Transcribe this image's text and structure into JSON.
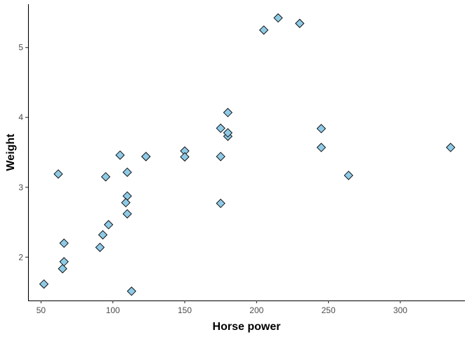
{
  "chart_data": {
    "type": "scatter",
    "xlabel": "Horse power",
    "ylabel": "Weight",
    "xlim": [
      41,
      345
    ],
    "ylim": [
      1.38,
      5.62
    ],
    "xticks": [
      50,
      100,
      150,
      200,
      250,
      300
    ],
    "yticks": [
      2,
      3,
      4,
      5
    ],
    "grid": false,
    "point_shape": "diamond",
    "point_color": "#8ecae6",
    "series": [
      {
        "points": [
          {
            "x": 110,
            "y": 2.62
          },
          {
            "x": 110,
            "y": 2.875
          },
          {
            "x": 93,
            "y": 2.32
          },
          {
            "x": 110,
            "y": 3.215
          },
          {
            "x": 175,
            "y": 3.44
          },
          {
            "x": 105,
            "y": 3.46
          },
          {
            "x": 245,
            "y": 3.57
          },
          {
            "x": 62,
            "y": 3.19
          },
          {
            "x": 95,
            "y": 3.15
          },
          {
            "x": 123,
            "y": 3.44
          },
          {
            "x": 123,
            "y": 3.44
          },
          {
            "x": 180,
            "y": 4.07
          },
          {
            "x": 180,
            "y": 3.73
          },
          {
            "x": 180,
            "y": 3.78
          },
          {
            "x": 205,
            "y": 5.25
          },
          {
            "x": 215,
            "y": 5.424
          },
          {
            "x": 230,
            "y": 5.345
          },
          {
            "x": 66,
            "y": 2.2
          },
          {
            "x": 52,
            "y": 1.615
          },
          {
            "x": 65,
            "y": 1.835
          },
          {
            "x": 97,
            "y": 2.465
          },
          {
            "x": 150,
            "y": 3.52
          },
          {
            "x": 150,
            "y": 3.435
          },
          {
            "x": 245,
            "y": 3.84
          },
          {
            "x": 175,
            "y": 3.845
          },
          {
            "x": 66,
            "y": 1.935
          },
          {
            "x": 91,
            "y": 2.14
          },
          {
            "x": 113,
            "y": 1.513
          },
          {
            "x": 264,
            "y": 3.17
          },
          {
            "x": 175,
            "y": 2.77
          },
          {
            "x": 335,
            "y": 3.57
          },
          {
            "x": 109,
            "y": 2.78
          }
        ]
      }
    ]
  }
}
